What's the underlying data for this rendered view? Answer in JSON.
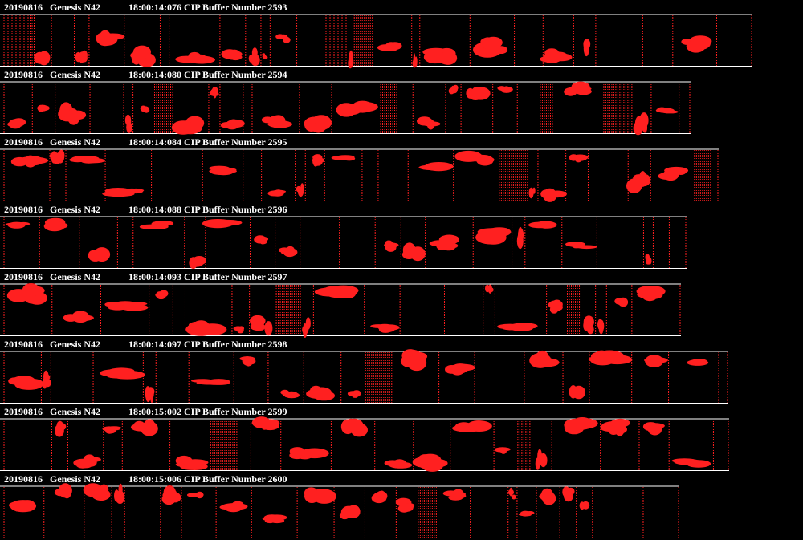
{
  "strips": [
    {
      "date": "20190816",
      "probe": "Genesis N42",
      "buffer": "18:00:14:076 CIP Buffer Number 2593"
    },
    {
      "date": "20190816",
      "probe": "Genesis N42",
      "buffer": "18:00:14:080 CIP Buffer Number 2594"
    },
    {
      "date": "20190816",
      "probe": "Genesis N42",
      "buffer": "18:00:14:084 CIP Buffer Number 2595"
    },
    {
      "date": "20190816",
      "probe": "Genesis N42",
      "buffer": "18:00:14:088 CIP Buffer Number 2596"
    },
    {
      "date": "20190816",
      "probe": "Genesis N42",
      "buffer": "18:00:14:093 CIP Buffer Number 2597"
    },
    {
      "date": "20190816",
      "probe": "Genesis N42",
      "buffer": "18:00:14:097 CIP Buffer Number 2598"
    },
    {
      "date": "20190816",
      "probe": "Genesis N42",
      "buffer": "18:00:15:002 CIP Buffer Number 2599"
    },
    {
      "date": "20190816",
      "probe": "Genesis N42",
      "buffer": "18:00:15:006 CIP Buffer Number 2600"
    }
  ]
}
